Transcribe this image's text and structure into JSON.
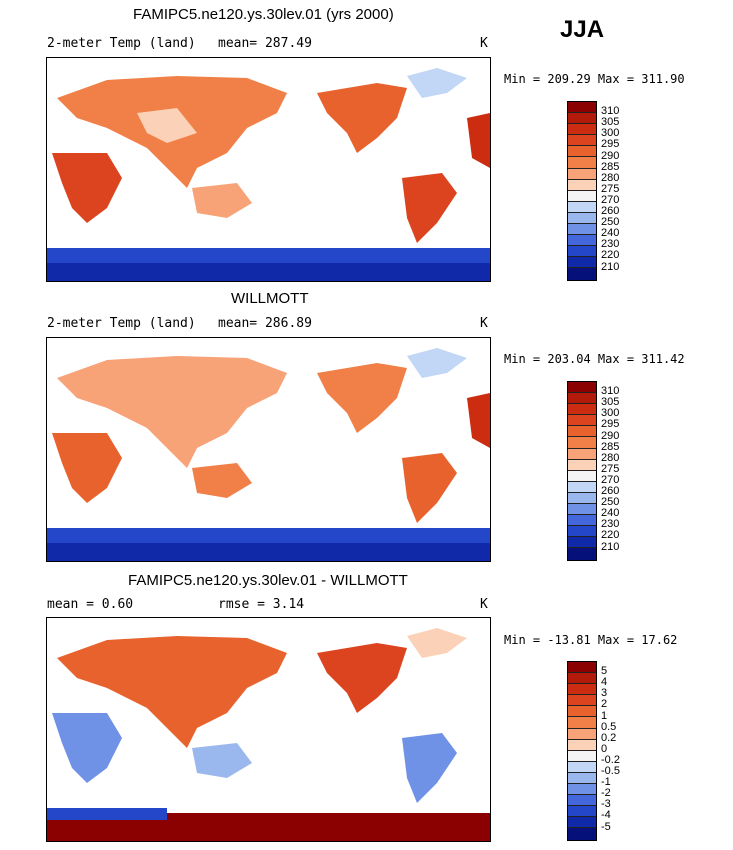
{
  "season": "JJA",
  "panels": [
    {
      "title": "FAMIPC5.ne120.ys.30lev.01 (yrs 2000)",
      "left_label": "2-meter Temp (land)",
      "mid_label": "mean= 287.49",
      "units": "K",
      "minmax": "Min = 209.29 Max = 311.90",
      "levels": [
        "310",
        "305",
        "300",
        "295",
        "290",
        "285",
        "280",
        "275",
        "270",
        "260",
        "250",
        "240",
        "230",
        "220",
        "210"
      ],
      "colors": [
        "#8b0000",
        "#b21a0a",
        "#cc2d10",
        "#dc4420",
        "#e8622e",
        "#f08048",
        "#f7a277",
        "#fbd1b8",
        "#f4f4f4",
        "#c2d6f5",
        "#9ab8ee",
        "#6f92e6",
        "#4468db",
        "#2446c8",
        "#1029a8",
        "#05107a"
      ]
    },
    {
      "title": "WILLMOTT",
      "left_label": "2-meter Temp (land)",
      "mid_label": "mean= 286.89",
      "units": "K",
      "minmax": "Min = 203.04 Max = 311.42",
      "levels": [
        "310",
        "305",
        "300",
        "295",
        "290",
        "285",
        "280",
        "275",
        "270",
        "260",
        "250",
        "240",
        "230",
        "220",
        "210"
      ],
      "colors": [
        "#8b0000",
        "#b21a0a",
        "#cc2d10",
        "#dc4420",
        "#e8622e",
        "#f08048",
        "#f7a277",
        "#fbd1b8",
        "#f4f4f4",
        "#c2d6f5",
        "#9ab8ee",
        "#6f92e6",
        "#4468db",
        "#2446c8",
        "#1029a8",
        "#05107a"
      ]
    },
    {
      "title": "FAMIPC5.ne120.ys.30lev.01 - WILLMOTT",
      "left_label": "mean =    0.60",
      "mid_label": "rmse =    3.14",
      "units": "K",
      "minmax": "Min = -13.81 Max =  17.62",
      "levels": [
        "5",
        "4",
        "3",
        "2",
        "1",
        "0.5",
        "0.2",
        "0",
        "-0.2",
        "-0.5",
        "-1",
        "-2",
        "-3",
        "-4",
        "-5"
      ],
      "colors": [
        "#8b0000",
        "#b21a0a",
        "#cc2d10",
        "#dc4420",
        "#e8622e",
        "#f08048",
        "#f7a277",
        "#fbd1b8",
        "#f4f4f4",
        "#c2d6f5",
        "#9ab8ee",
        "#6f92e6",
        "#4468db",
        "#2446c8",
        "#1029a8",
        "#05107a"
      ]
    }
  ]
}
